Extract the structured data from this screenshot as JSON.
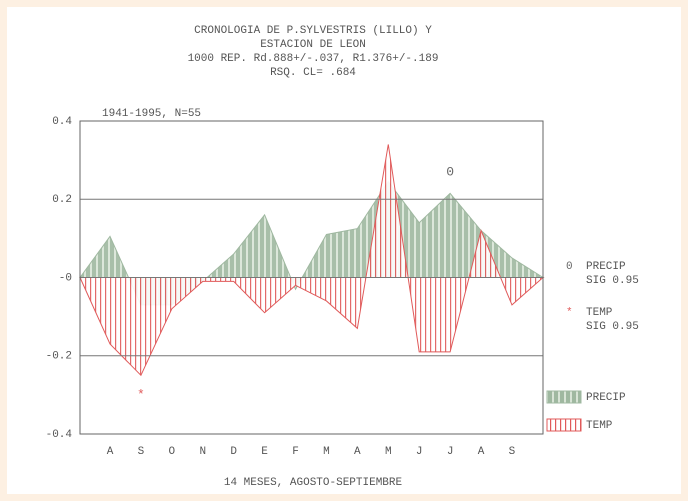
{
  "chart_data": {
    "type": "area",
    "title": [
      "CRONOLOGIA DE P.SYLVESTRIS (LILLO) Y",
      "ESTACION DE LEON",
      "1000 REP. Rd.888+/-.037, R1.376+/-.189",
      "RSQ. CL= .684"
    ],
    "subtitle": "1941-1995, N=55",
    "x_label": "14 MESES, AGOSTO-SEPTIEMBRE",
    "categories": [
      "A",
      "S",
      "O",
      "N",
      "D",
      "E",
      "F",
      "M",
      "A",
      "M",
      "J",
      "J",
      "A",
      "S"
    ],
    "series": [
      {
        "name": "PRECIP",
        "color": "#9fb8a0",
        "values": [
          0.105,
          -0.07,
          -0.07,
          -0.01,
          0.06,
          0.16,
          -0.03,
          0.11,
          0.125,
          0.245,
          0.14,
          0.215,
          0.12,
          0.05
        ]
      },
      {
        "name": "TEMP",
        "color": "#e05a5a",
        "values": [
          -0.17,
          -0.25,
          -0.08,
          -0.01,
          -0.01,
          -0.09,
          -0.02,
          -0.06,
          -0.13,
          0.34,
          -0.19,
          -0.19,
          0.12,
          -0.07
        ]
      }
    ],
    "ylim": [
      -0.4,
      0.4
    ],
    "yticks": [
      0.4,
      0.2,
      {
        "value": 0,
        "label": "-0"
      },
      -0.2,
      -0.4
    ],
    "grid": true,
    "annotations": [
      {
        "text": "0",
        "category_index": 11,
        "y": 0.27,
        "color": "#666666"
      },
      {
        "text": "*",
        "category_index": 1,
        "y": -0.3,
        "color": "#e05a5a"
      }
    ],
    "sig_legend": [
      {
        "symbol": "0",
        "lines": [
          "PRECIP",
          "SIG 0.95"
        ],
        "color": "#666666"
      },
      {
        "symbol": "*",
        "lines": [
          "TEMP",
          "SIG 0.95"
        ],
        "color": "#e05a5a"
      }
    ]
  }
}
